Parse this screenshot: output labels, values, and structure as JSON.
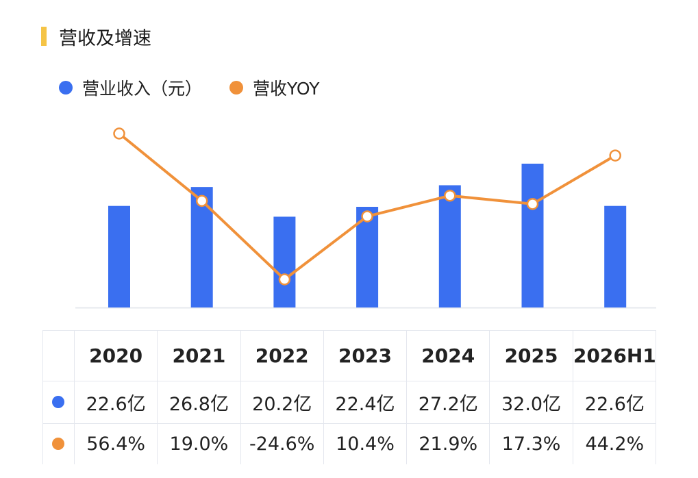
{
  "title": "营收及增速",
  "legend": {
    "revenue": "营业收入（元）",
    "yoy": "营收YOY"
  },
  "colors": {
    "revenue": "#3a6ff0",
    "yoy": "#f0913a",
    "accent": "#f5c446"
  },
  "chart_data": {
    "type": "bar",
    "categories": [
      "2020",
      "2021",
      "2022",
      "2023",
      "2024",
      "2025",
      "2026H1"
    ],
    "series": [
      {
        "name": "营业收入（元）",
        "type": "bar",
        "values": [
          22.6,
          26.8,
          20.2,
          22.4,
          27.2,
          32.0,
          22.6
        ]
      },
      {
        "name": "营收YOY",
        "type": "line",
        "values": [
          56.4,
          19.0,
          -24.6,
          10.4,
          21.9,
          17.3,
          44.2
        ]
      }
    ],
    "revenue_labels": [
      "22.6亿",
      "26.8亿",
      "20.2亿",
      "22.4亿",
      "27.2亿",
      "32.0亿",
      "22.6亿"
    ],
    "yoy_labels": [
      "56.4%",
      "19.0%",
      "-24.6%",
      "10.4%",
      "21.9%",
      "17.3%",
      "44.2%"
    ],
    "legend_position": "top-left",
    "grid": false
  }
}
